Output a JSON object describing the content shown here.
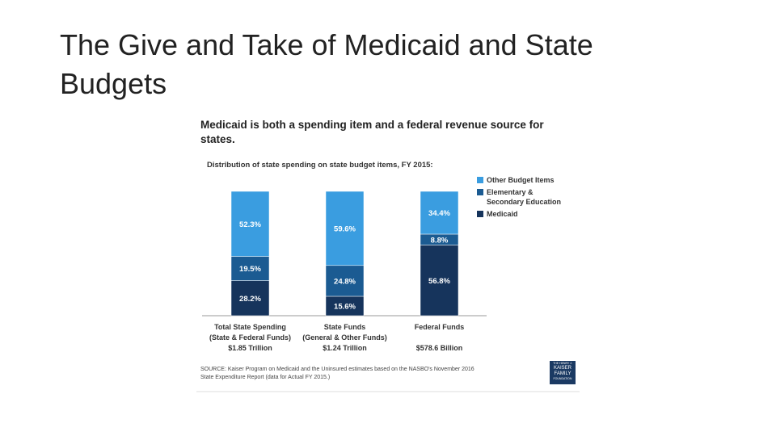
{
  "slide_title": "The Give and Take of Medicaid and State Budgets",
  "chart_data": {
    "type": "stacked-bar",
    "title": "Medicaid is both a spending item and a federal revenue source for states.",
    "subtitle": "Distribution of state spending on state budget items, FY 2015:",
    "categories": [
      [
        "Total State Spending",
        "(State & Federal Funds)"
      ],
      [
        "State Funds",
        "(General & Other Funds)"
      ],
      [
        "Federal Funds"
      ]
    ],
    "category_totals": [
      "$1.85 Trillion",
      "$1.24 Trillion",
      "$578.6 Billion"
    ],
    "series": [
      {
        "name": "Medicaid",
        "color": "#16345c",
        "values": [
          28.2,
          15.6,
          56.8
        ],
        "value_labels": [
          "28.2%",
          "15.6%",
          "56.8%"
        ]
      },
      {
        "name": "Elementary & Secondary Education",
        "color": "#1b5b92",
        "values": [
          19.5,
          24.8,
          8.8
        ],
        "value_labels": [
          "19.5%",
          "24.8%",
          "8.8%"
        ]
      },
      {
        "name": "Other Budget Items",
        "color": "#3a9de0",
        "values": [
          52.3,
          59.6,
          34.4
        ],
        "value_labels": [
          "52.3%",
          "59.6%",
          "34.4%"
        ]
      }
    ],
    "source": "SOURCE: Kaiser Program on Medicaid and the Uninsured estimates based on the NASBO's November 2016 State Expenditure Report (data for Actual FY 2015.)",
    "logo": [
      "THE HENRY J.",
      "KAISER",
      "FAMILY",
      "FOUNDATION"
    ]
  }
}
